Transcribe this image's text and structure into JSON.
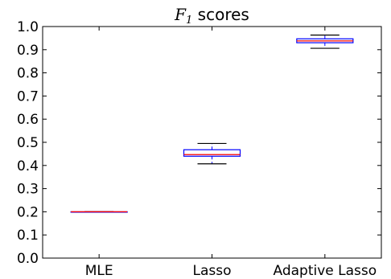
{
  "chart_data": {
    "type": "box",
    "title": {
      "symbol": "F",
      "subscript": "1",
      "text": "scores"
    },
    "categories": [
      "MLE",
      "Lasso",
      "Adaptive Lasso"
    ],
    "ylim": [
      0.0,
      1.0
    ],
    "yticks": [
      "0.0",
      "0.1",
      "0.2",
      "0.3",
      "0.4",
      "0.5",
      "0.6",
      "0.7",
      "0.8",
      "0.9",
      "1.0"
    ],
    "grid": false,
    "boxes": [
      {
        "category": "MLE",
        "whisker_low": 0.2,
        "q1": 0.2,
        "median": 0.2,
        "q3": 0.2,
        "whisker_high": 0.2
      },
      {
        "category": "Lasso",
        "whisker_low": 0.407,
        "q1": 0.44,
        "median": 0.447,
        "q3": 0.468,
        "whisker_high": 0.495
      },
      {
        "category": "Adaptive Lasso",
        "whisker_low": 0.906,
        "q1": 0.93,
        "median": 0.938,
        "q3": 0.947,
        "whisker_high": 0.963
      }
    ],
    "colors": {
      "box": "#0000ff",
      "median": "#ff0000",
      "whisker": "#000000",
      "axes": "#000000"
    }
  }
}
